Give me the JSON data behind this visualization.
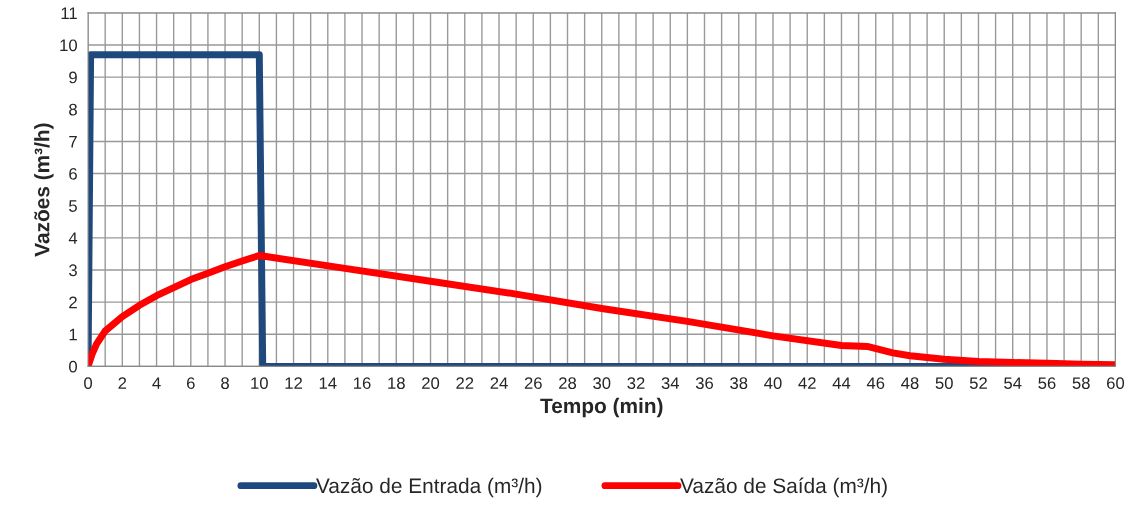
{
  "chart_data": {
    "type": "line",
    "xlabel": "Tempo (min)",
    "ylabel": "Vazões (m³/h)",
    "xlim": [
      0,
      60
    ],
    "ylim": [
      0,
      11
    ],
    "xticks": [
      0,
      {
        "value": 1,
        "label": null
      },
      2,
      {
        "value": 3,
        "label": null
      },
      4,
      {
        "value": 5,
        "label": null
      },
      6,
      {
        "value": 7,
        "label": null
      },
      8,
      {
        "value": 9,
        "label": null
      },
      10,
      {
        "value": 11,
        "label": null
      },
      12,
      {
        "value": 13,
        "label": null
      },
      14,
      {
        "value": 15,
        "label": null
      },
      16,
      {
        "value": 17,
        "label": null
      },
      18,
      {
        "value": 19,
        "label": null
      },
      20,
      {
        "value": 21,
        "label": null
      },
      22,
      {
        "value": 23,
        "label": null
      },
      24,
      {
        "value": 25,
        "label": null
      },
      26,
      {
        "value": 27,
        "label": null
      },
      28,
      {
        "value": 29,
        "label": null
      },
      30,
      {
        "value": 31,
        "label": null
      },
      32,
      {
        "value": 33,
        "label": null
      },
      34,
      {
        "value": 35,
        "label": null
      },
      36,
      {
        "value": 37,
        "label": null
      },
      38,
      {
        "value": 39,
        "label": null
      },
      40,
      {
        "value": 41,
        "label": null
      },
      42,
      {
        "value": 43,
        "label": null
      },
      44,
      {
        "value": 45,
        "label": null
      },
      46,
      {
        "value": 47,
        "label": null
      },
      48,
      {
        "value": 49,
        "label": null
      },
      50,
      {
        "value": 51,
        "label": null
      },
      52,
      {
        "value": 53,
        "label": null
      },
      54,
      {
        "value": 55,
        "label": null
      },
      56,
      {
        "value": 57,
        "label": null
      },
      58,
      {
        "value": 59,
        "label": null
      },
      60
    ],
    "yticks": [
      0,
      1,
      2,
      3,
      4,
      5,
      6,
      7,
      8,
      9,
      10,
      11
    ],
    "grid": true,
    "legend": "bottom",
    "marker": "none",
    "line_style": "solid",
    "series": [
      {
        "name": "Vazão de Entrada (m³/h)",
        "color": "#1f497d",
        "x": [
          0,
          0.15,
          10,
          10.2,
          60
        ],
        "values": [
          0,
          9.7,
          9.7,
          0,
          0
        ]
      },
      {
        "name": "Vazão de Saída (m³/h)",
        "color": "#ff0000",
        "x": [
          0,
          0.25,
          0.5,
          1,
          2,
          3,
          4,
          5,
          6,
          7,
          8,
          9,
          10,
          15,
          20,
          25,
          30,
          35,
          40,
          44,
          45.5,
          47,
          48,
          50,
          52,
          54,
          56,
          58,
          60
        ],
        "values": [
          0,
          0.4,
          0.7,
          1.1,
          1.55,
          1.9,
          2.2,
          2.45,
          2.7,
          2.9,
          3.1,
          3.28,
          3.45,
          3.05,
          2.65,
          2.25,
          1.8,
          1.4,
          0.95,
          0.65,
          0.62,
          0.42,
          0.33,
          0.22,
          0.15,
          0.12,
          0.1,
          0.07,
          0.05
        ]
      }
    ]
  }
}
